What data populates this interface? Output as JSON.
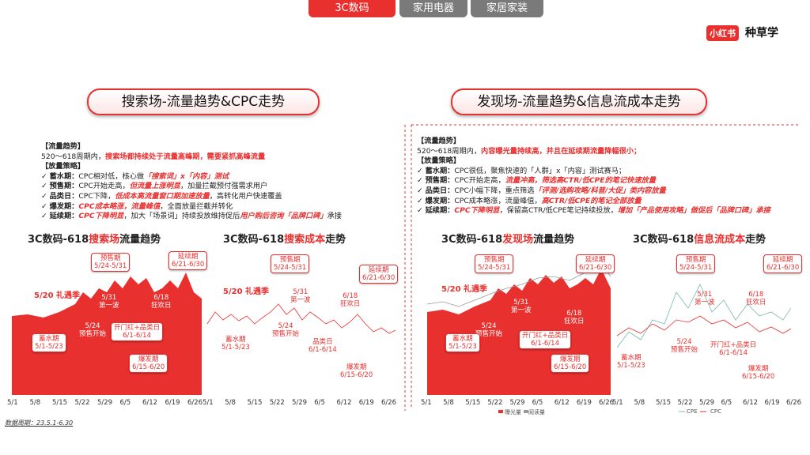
{
  "tabs": [
    "3C数码",
    "家用电器",
    "家居家装"
  ],
  "logo": {
    "badge": "小红书",
    "text": "种草学"
  },
  "panels": [
    {
      "heading": "搜索场-流量趋势&CPC走势",
      "trend_title": "【流量趋势】",
      "trend": [
        {
          "text": "520～618周期内，"
        },
        {
          "text": "搜索场都持续处于流量高峰期，需要紧抓高峰流量",
          "em": true
        }
      ],
      "strategy_title": "【放量策略】",
      "items": [
        {
          "label": "蓄水期：",
          "segments": [
            {
              "text": "CPC相对低，核心做"
            },
            {
              "text": "「搜索词」x「内容」测试",
              "em": true
            }
          ]
        },
        {
          "label": "预售期：",
          "segments": [
            {
              "text": "CPC开始走高，"
            },
            {
              "text": "但流量上涨明显",
              "em": true
            },
            {
              "text": "，加量拦截预付强需求用户"
            }
          ]
        },
        {
          "label": "品类日：",
          "segments": [
            {
              "text": "CPC下降，"
            },
            {
              "text": "低成本高流量窗口期加速放量",
              "em": true
            },
            {
              "text": "，高转化用户快速覆盖"
            }
          ]
        },
        {
          "label": "爆发期：",
          "segments": [
            {
              "text": "CPC成本略涨，流量峰值",
              "em": true
            },
            {
              "text": "，全面放量拦截并转化"
            }
          ]
        },
        {
          "label": "延续期：",
          "segments": [
            {
              "text": "CPC下降明显",
              "em": true
            },
            {
              "text": "，加大「场景词」持续投放维持促后"
            },
            {
              "text": "用户购后咨询「品牌口碑」",
              "em": true
            },
            {
              "text": "承接"
            }
          ]
        }
      ],
      "charts": [
        {
          "title": [
            {
              "text": "3C数码-618"
            },
            {
              "text": "搜索场",
              "em": true
            },
            {
              "text": "流量趋势"
            }
          ],
          "annotations": [
            "5/20 礼遇季",
            "预售期\n5/24-5/31",
            "延续期\n6/21-6/30",
            "5/31\n第一波",
            "6/18\n狂欢日",
            "5/24\n预售开始",
            "开门红+品类日\n6/1-6/14",
            "蓄水期\n5/1-5/23",
            "爆发期\n6/15-6/20"
          ],
          "x": [
            "5/1",
            "5/8",
            "5/15",
            "5/22",
            "5/29",
            "6/5",
            "6/12",
            "6/19",
            "6/26"
          ]
        },
        {
          "title": [
            {
              "text": "3C数码-618"
            },
            {
              "text": "搜索成本",
              "em": true
            },
            {
              "text": "走势"
            }
          ],
          "annotations": [
            "5/20 礼遇季",
            "5/31\n第一波",
            "预售期\n5/24-5/31",
            "延续期\n6/21-6/30",
            "6/18\n狂欢日",
            "5/24\n预售开始",
            "品类日\n6/1-6/14",
            "蓄水期\n5/1-5/23",
            "爆发期\n6/15-6/20"
          ],
          "x": [
            "5/1",
            "5/8",
            "5/15",
            "5/22",
            "5/29",
            "6/5",
            "6/12",
            "6/19",
            "6/26"
          ]
        }
      ]
    },
    {
      "heading": "发现场-流量趋势&信息流成本走势",
      "trend_title": "【流量趋势】",
      "trend": [
        {
          "text": "520～618周期内，"
        },
        {
          "text": "内容曝光量持续高，并且在延续期流量降幅很小；",
          "em": true
        }
      ],
      "strategy_title": "【放量策略】",
      "items": [
        {
          "label": "蓄水期：",
          "segments": [
            {
              "text": "CPC很低，聚焦快速的「人群」x「内容」测试赛马；"
            }
          ]
        },
        {
          "label": "预售期：",
          "segments": [
            {
              "text": "CPC开始走高，"
            },
            {
              "text": "流量冲高，筛选高CTR/低CPE的笔记快速放量",
              "em": true
            }
          ]
        },
        {
          "label": "品类日：",
          "segments": [
            {
              "text": "CPC小幅下降，重点筛选"
            },
            {
              "text": "「评测/选购攻略/科普/大促」类内容放量",
              "em": true
            }
          ]
        },
        {
          "label": "爆发期：",
          "segments": [
            {
              "text": "CPC成本略涨，流量峰值，"
            },
            {
              "text": "高CTR/低CPE的笔记全部放量",
              "em": true
            }
          ]
        },
        {
          "label": "延续期：",
          "segments": [
            {
              "text": "CPC下降明显",
              "em": true
            },
            {
              "text": "，保留高CTR/低CPE笔记持续投放，"
            },
            {
              "text": "增加「产品使用攻略」做促后「品牌口碑」承接",
              "em": true
            }
          ]
        }
      ],
      "charts": [
        {
          "title": [
            {
              "text": "3C数码-618"
            },
            {
              "text": "发现场",
              "em": true
            },
            {
              "text": "流量趋势"
            }
          ],
          "annotations": [
            "5/20 礼遇季",
            "预售期\n5/24-5/31",
            "延续期\n6/21-6/30",
            "5/31\n第一波",
            "6/18\n狂欢日",
            "5/24\n预售开始",
            "开门红+品类日\n6/1-6/14",
            "蓄水期\n5/1-5/23",
            "爆发期\n6/15-6/20"
          ],
          "x": [
            "5/1",
            "5/8",
            "5/15",
            "5/22",
            "5/29",
            "6/5",
            "6/12",
            "6/19",
            "6/26"
          ],
          "legend": [
            "曝光量",
            "阅读量"
          ]
        },
        {
          "title": [
            {
              "text": "3C数码-618"
            },
            {
              "text": "信息流成本",
              "em": true
            },
            {
              "text": "走势"
            }
          ],
          "annotations": [
            "预售期\n5/24-5/31",
            "延续期\n6/21-6/30",
            "5/31\n第一波",
            "6/18\n狂欢日",
            "5/24\n预售开始",
            "蓄水期\n5/1-5/23",
            "开门红+品类日\n6/1-6/14",
            "爆发期\n6/15-6/20"
          ],
          "x": [
            "5/1",
            "5/8",
            "5/15",
            "5/22",
            "5/29",
            "6/5",
            "6/12",
            "6/19",
            "6/26"
          ],
          "legend": [
            "CPE",
            "CPC"
          ]
        }
      ]
    }
  ],
  "footnote": "数据周期：23.5.1-6.30"
}
